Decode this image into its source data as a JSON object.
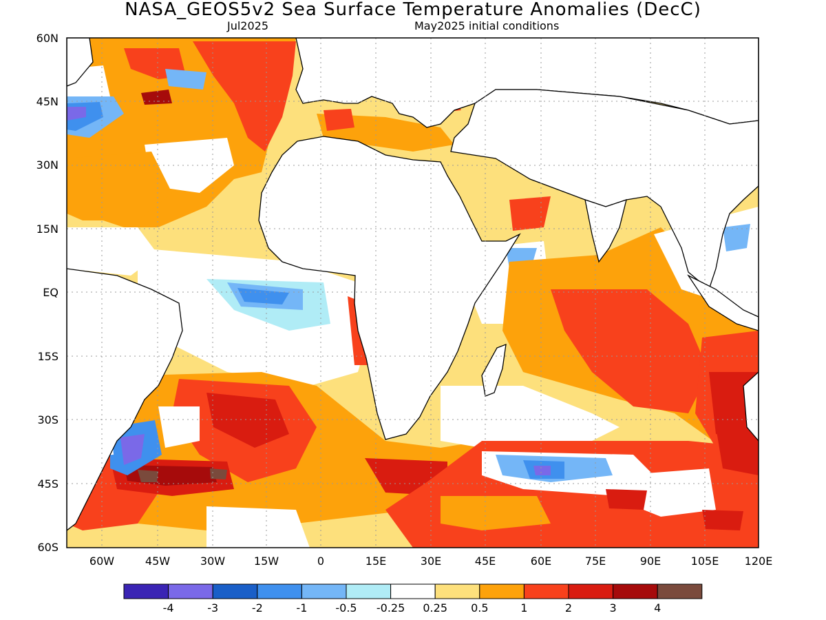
{
  "title": "NASA_GEOS5v2 Sea Surface Temperature Anomalies (DecC)",
  "subtitle_left": "Jul2025",
  "subtitle_right": "May2025 initial conditions",
  "lat_labels": [
    "60N",
    "45N",
    "30N",
    "15N",
    "EQ",
    "15S",
    "30S",
    "45S",
    "60S"
  ],
  "lon_labels": [
    "60W",
    "45W",
    "30W",
    "15W",
    "0",
    "15E",
    "30E",
    "45E",
    "60E",
    "75E",
    "90E",
    "105E",
    "120E"
  ],
  "colorbar": {
    "colors": [
      "#3a24b4",
      "#7a69e8",
      "#1a5fc8",
      "#3f90ee",
      "#74b6f7",
      "#b0ecf6",
      "#ffffff",
      "#fde07c",
      "#fda20b",
      "#f8411c",
      "#d91c10",
      "#a60b0b",
      "#7a4a3c"
    ],
    "labels": [
      "-4",
      "-3",
      "-2",
      "-1",
      "-0.5",
      "-0.25",
      "0.25",
      "0.5",
      "1",
      "2",
      "3",
      "4"
    ]
  },
  "legend_colors": {
    "land": "#ffffff",
    "coast": "#000000",
    "grid": "#999999"
  }
}
